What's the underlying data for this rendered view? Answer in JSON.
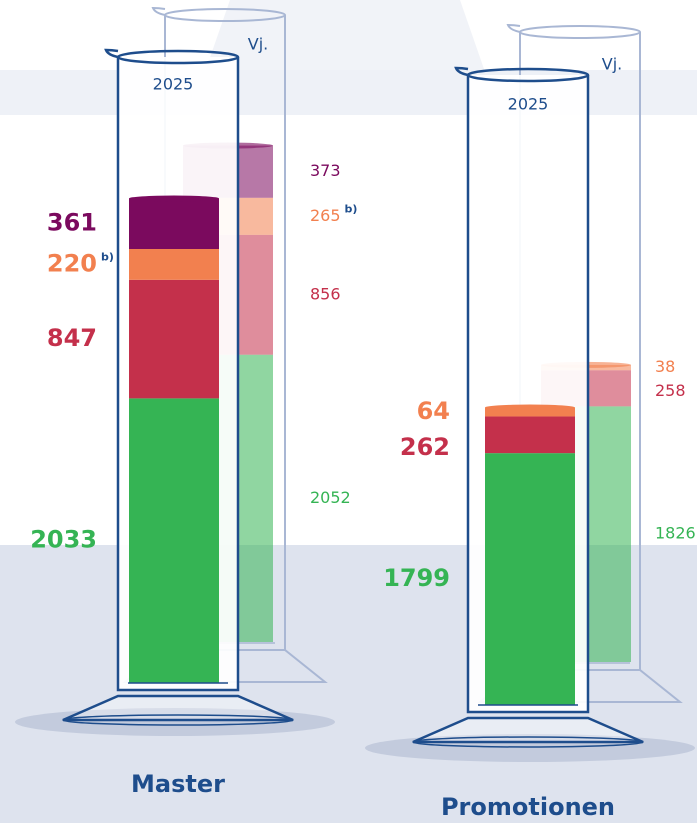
{
  "chart_data": {
    "type": "cylinder",
    "groups": [
      {
        "name": "Master",
        "cylinders": [
          {
            "label": "2025",
            "segments": [
              {
                "value": 2033,
                "color": "#35b454"
              },
              {
                "value": 847,
                "color": "#c4304b"
              },
              {
                "value": 220,
                "color": "#f2804f",
                "note": "b)"
              },
              {
                "value": 361,
                "color": "#7b0a5e"
              }
            ]
          },
          {
            "label": "Vj.",
            "segments": [
              {
                "value": 2052,
                "color": "#35b454"
              },
              {
                "value": 856,
                "color": "#c4304b"
              },
              {
                "value": 265,
                "color": "#f2804f",
                "note": "b)"
              },
              {
                "value": 373,
                "color": "#7b0a5e"
              }
            ]
          }
        ]
      },
      {
        "name": "Promotionen",
        "cylinders": [
          {
            "label": "2025",
            "segments": [
              {
                "value": 1799,
                "color": "#35b454"
              },
              {
                "value": 262,
                "color": "#c4304b"
              },
              {
                "value": 64,
                "color": "#f2804f"
              }
            ]
          },
          {
            "label": "Vj.",
            "segments": [
              {
                "value": 1826,
                "color": "#35b454"
              },
              {
                "value": 258,
                "color": "#c4304b"
              },
              {
                "value": 38,
                "color": "#f2804f"
              }
            ]
          }
        ]
      }
    ]
  }
}
